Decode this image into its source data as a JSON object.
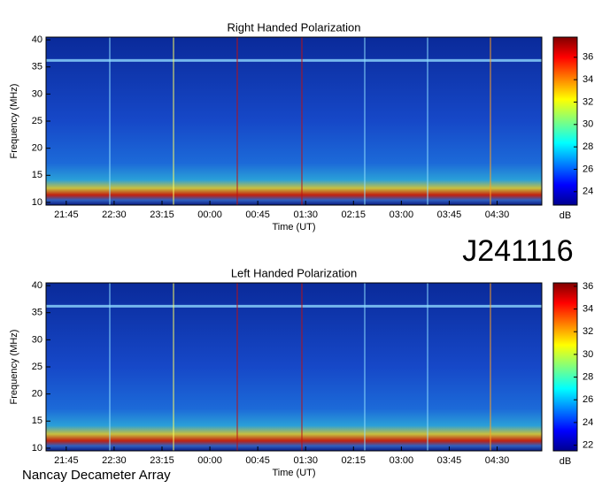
{
  "page": {
    "id": "J241116",
    "source": "Nancay Decameter Array"
  },
  "chart_data": [
    {
      "type": "heatmap",
      "title": "Right Handed Polarization",
      "x_label": "Time (UT)",
      "y_label": "Frequency (MHz)",
      "xlim": [
        1286,
        1752
      ],
      "xticks": [
        {
          "value": 1305,
          "label": "21:45"
        },
        {
          "value": 1350,
          "label": "22:30"
        },
        {
          "value": 1395,
          "label": "23:15"
        },
        {
          "value": 1440,
          "label": "00:00"
        },
        {
          "value": 1485,
          "label": "00:45"
        },
        {
          "value": 1530,
          "label": "01:30"
        },
        {
          "value": 1575,
          "label": "02:15"
        },
        {
          "value": 1620,
          "label": "03:00"
        },
        {
          "value": 1665,
          "label": "03:45"
        },
        {
          "value": 1710,
          "label": "04:30"
        }
      ],
      "ylim": [
        9.5,
        40.5
      ],
      "yticks": [
        10,
        15,
        20,
        25,
        30,
        35,
        40
      ],
      "colorbar": {
        "label": "dB",
        "colormap": "jet",
        "lim": [
          22.8,
          37.8
        ],
        "ticks": [
          24,
          26,
          28,
          30,
          32,
          34,
          36
        ]
      }
    },
    {
      "type": "heatmap",
      "title": "Left Handed Polarization",
      "x_label": "Time (UT)",
      "y_label": "Frequency (MHz)",
      "xlim": [
        1286,
        1752
      ],
      "xticks": [
        {
          "value": 1305,
          "label": "21:45"
        },
        {
          "value": 1350,
          "label": "22:30"
        },
        {
          "value": 1395,
          "label": "23:15"
        },
        {
          "value": 1440,
          "label": "00:00"
        },
        {
          "value": 1485,
          "label": "00:45"
        },
        {
          "value": 1530,
          "label": "01:30"
        },
        {
          "value": 1575,
          "label": "02:15"
        },
        {
          "value": 1620,
          "label": "03:00"
        },
        {
          "value": 1665,
          "label": "03:45"
        },
        {
          "value": 1710,
          "label": "04:30"
        }
      ],
      "ylim": [
        9.5,
        40.5
      ],
      "yticks": [
        10,
        15,
        20,
        25,
        30,
        35,
        40
      ],
      "colorbar": {
        "label": "dB",
        "colormap": "jet",
        "lim": [
          21.5,
          36.3
        ],
        "ticks": [
          22,
          24,
          26,
          28,
          30,
          32,
          34,
          36
        ]
      }
    }
  ]
}
